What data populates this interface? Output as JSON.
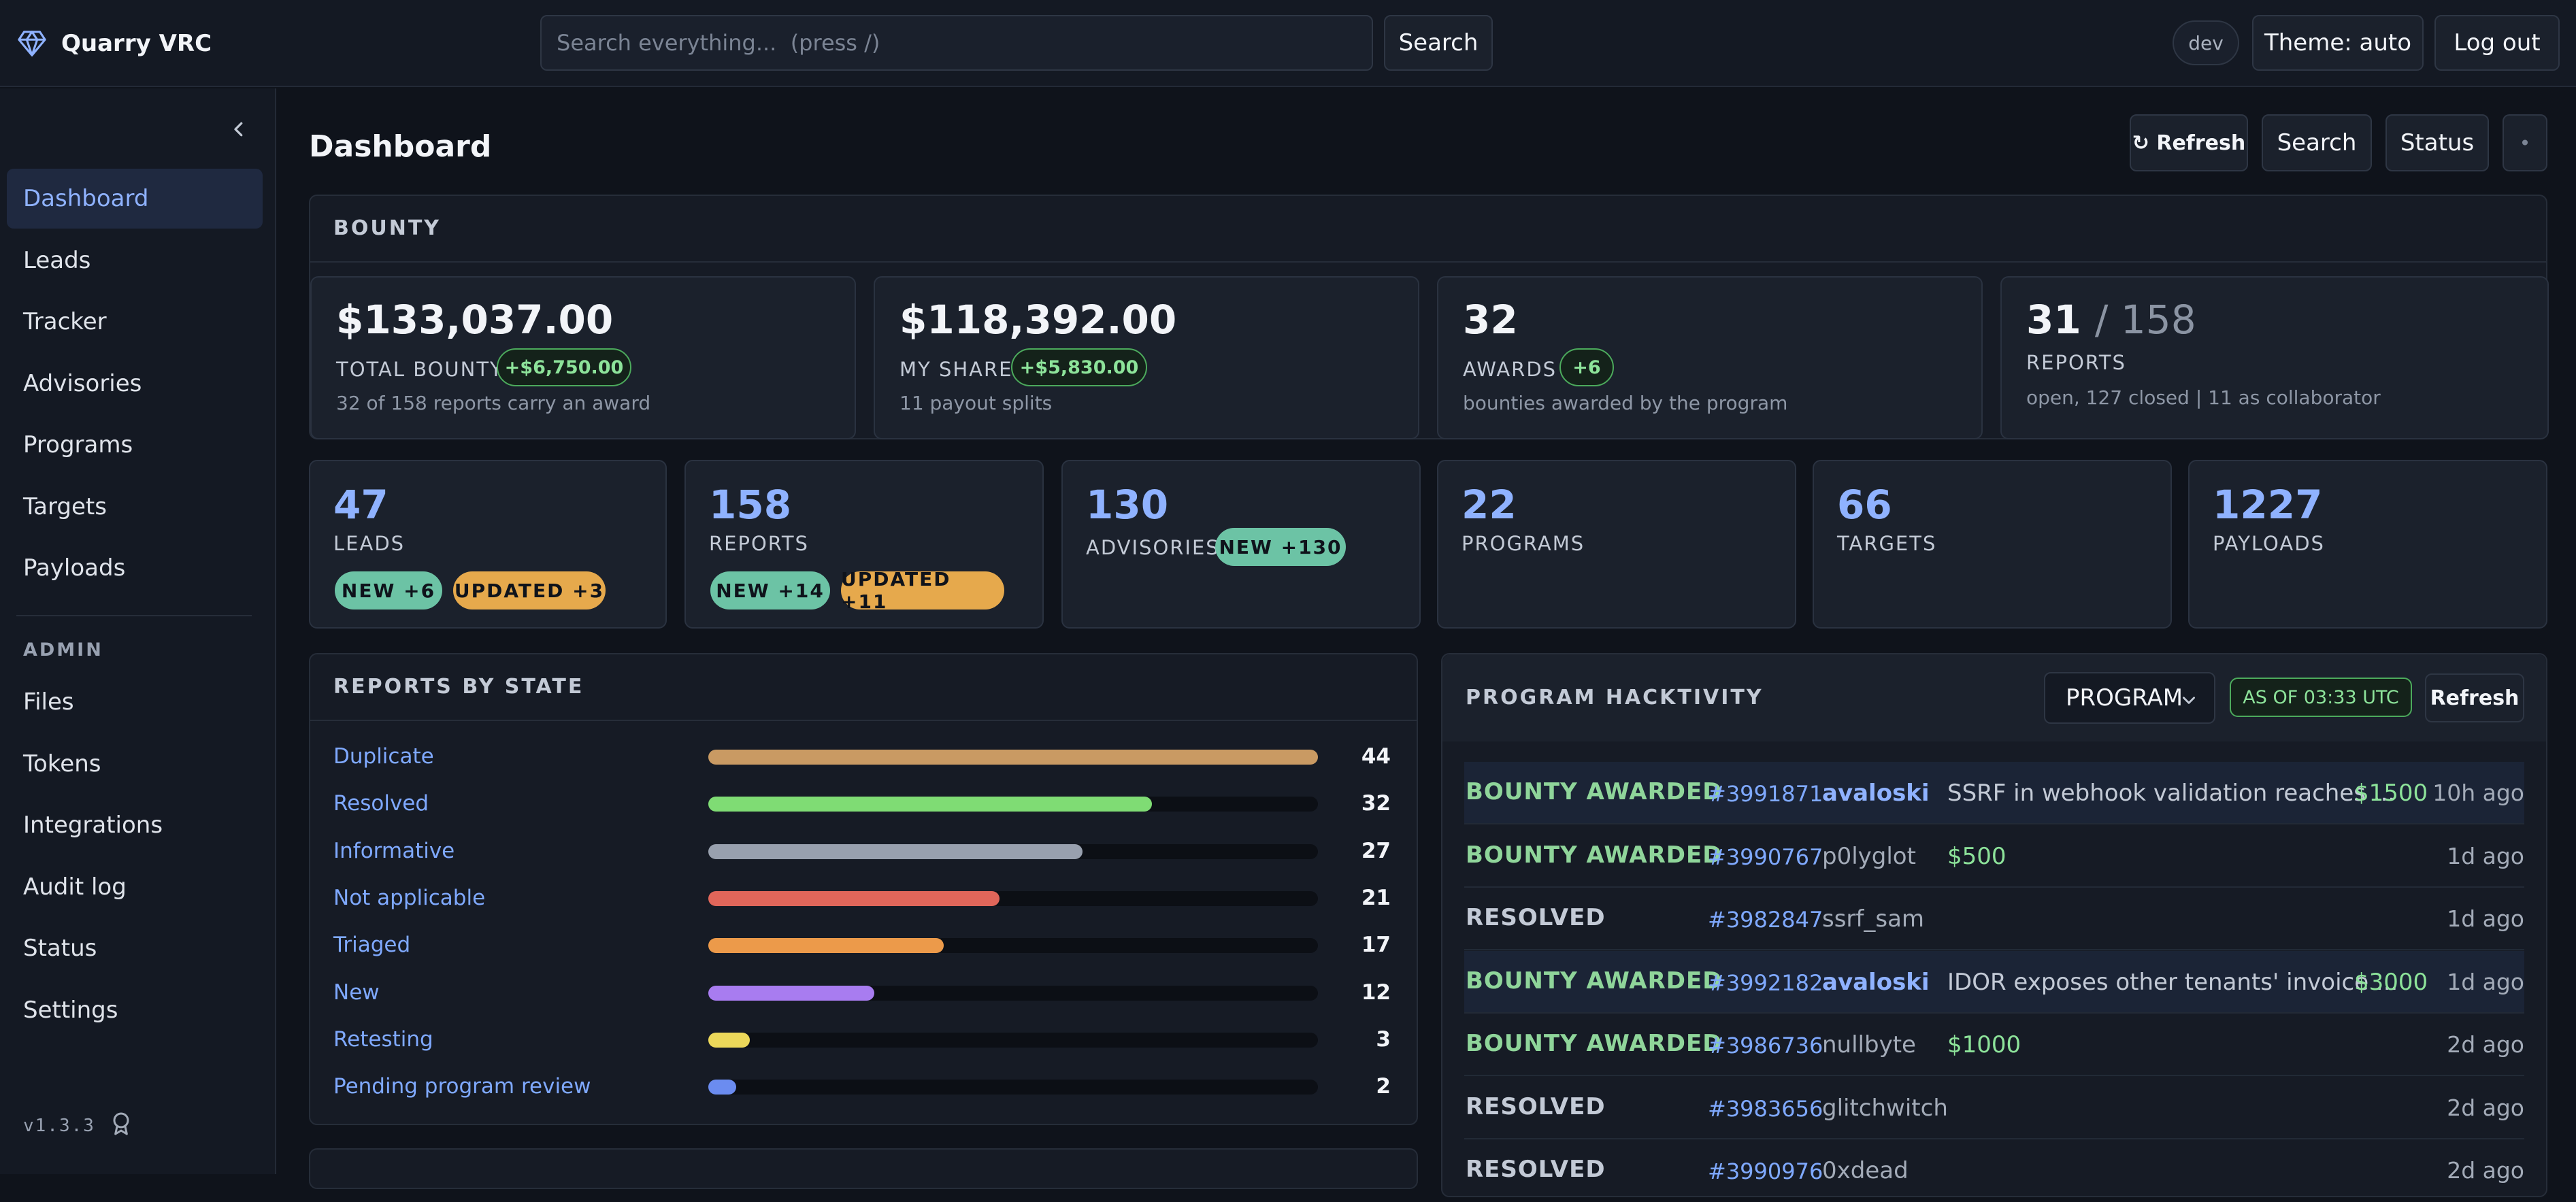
{
  "app": {
    "name": "Quarry VRC"
  },
  "header": {
    "search_placeholder": "Search everything...  (press /)",
    "search_button": "Search",
    "env_badge": "dev",
    "theme_button": "Theme: auto",
    "logout_button": "Log out"
  },
  "sidebar": {
    "items": [
      "Dashboard",
      "Leads",
      "Tracker",
      "Advisories",
      "Programs",
      "Targets",
      "Payloads"
    ],
    "admin_label": "ADMIN",
    "admin_items": [
      "Files",
      "Tokens",
      "Integrations",
      "Audit log",
      "Status",
      "Settings"
    ],
    "version": "v1.3.3"
  },
  "page": {
    "title": "Dashboard",
    "refresh_button": "↻ Refresh",
    "search_button": "Search",
    "status_button": "Status",
    "more_button": "•"
  },
  "bounty": {
    "title": "BOUNTY",
    "total": {
      "value": "$133,037.00",
      "label": "TOTAL BOUNTY",
      "delta": "+$6,750.00",
      "sub": "32 of 158 reports carry an award"
    },
    "share": {
      "value": "$118,392.00",
      "label": "MY SHARE",
      "delta": "+$5,830.00",
      "sub": "11 payout splits"
    },
    "awards": {
      "value": "32",
      "label": "AWARDS",
      "delta": "+6",
      "sub": "bounties awarded by the program"
    },
    "reports": {
      "value": "31",
      "total": "/ 158",
      "label": "REPORTS",
      "sub": "open, 127 closed | 11 as collaborator"
    }
  },
  "stats": {
    "leads": {
      "value": "47",
      "label": "LEADS",
      "new": "NEW +6",
      "updated": "UPDATED +3"
    },
    "reports": {
      "value": "158",
      "label": "REPORTS",
      "new": "NEW +14",
      "updated": "UPDATED +11"
    },
    "advisories": {
      "value": "130",
      "label": "ADVISORIES",
      "new": "NEW +130"
    },
    "programs": {
      "value": "22",
      "label": "PROGRAMS"
    },
    "targets": {
      "value": "66",
      "label": "TARGETS"
    },
    "payloads": {
      "value": "1227",
      "label": "PAYLOADS"
    }
  },
  "reports_by_state": {
    "title": "REPORTS BY STATE",
    "max": 44,
    "rows": [
      {
        "name": "Duplicate",
        "count": 44,
        "color": "#c99a63"
      },
      {
        "name": "Resolved",
        "count": 32,
        "color": "#7fdc74"
      },
      {
        "name": "Informative",
        "count": 27,
        "color": "#98a0ae"
      },
      {
        "name": "Not applicable",
        "count": 21,
        "color": "#e0665a"
      },
      {
        "name": "Triaged",
        "count": 17,
        "color": "#ec9a4a"
      },
      {
        "name": "New",
        "count": 12,
        "color": "#a87cf0"
      },
      {
        "name": "Retesting",
        "count": 3,
        "color": "#ecd85a"
      },
      {
        "name": "Pending program review",
        "count": 2,
        "color": "#6b8cf0"
      }
    ]
  },
  "hacktivity": {
    "title": "PROGRAM HACKTIVITY",
    "filter_value": "PROGRAM",
    "as_of": "AS OF 03:33 UTC",
    "refresh_button": "Refresh",
    "rows": [
      {
        "kind": "BOUNTY AWARDED",
        "id": "#3991871",
        "user": "avaloski",
        "mine": true,
        "title": "SSRF in webhook validation reaches ...",
        "amount": "$1500",
        "time": "10h ago"
      },
      {
        "kind": "BOUNTY AWARDED",
        "id": "#3990767",
        "user": "p0lyglot",
        "mine": false,
        "title": "",
        "amount": "$500",
        "time": "1d ago"
      },
      {
        "kind": "RESOLVED",
        "id": "#3982847",
        "user": "ssrf_sam",
        "mine": false,
        "title": "",
        "amount": "",
        "time": "1d ago"
      },
      {
        "kind": "BOUNTY AWARDED",
        "id": "#3992182",
        "user": "avaloski",
        "mine": true,
        "title": "IDOR exposes other tenants' invoice ...",
        "amount": "$3000",
        "time": "1d ago"
      },
      {
        "kind": "BOUNTY AWARDED",
        "id": "#3986736",
        "user": "nullbyte",
        "mine": false,
        "title": "",
        "amount": "$1000",
        "time": "2d ago"
      },
      {
        "kind": "RESOLVED",
        "id": "#3983656",
        "user": "glitchwitch",
        "mine": false,
        "title": "",
        "amount": "",
        "time": "2d ago"
      },
      {
        "kind": "RESOLVED",
        "id": "#3990976",
        "user": "0xdead",
        "mine": false,
        "title": "",
        "amount": "",
        "time": "2d ago"
      }
    ]
  },
  "colors": {
    "accent": "#8fb2ff",
    "positive": "#8de39a",
    "new_badge": "#6cc3a5",
    "updated_badge": "#e6a94c"
  }
}
